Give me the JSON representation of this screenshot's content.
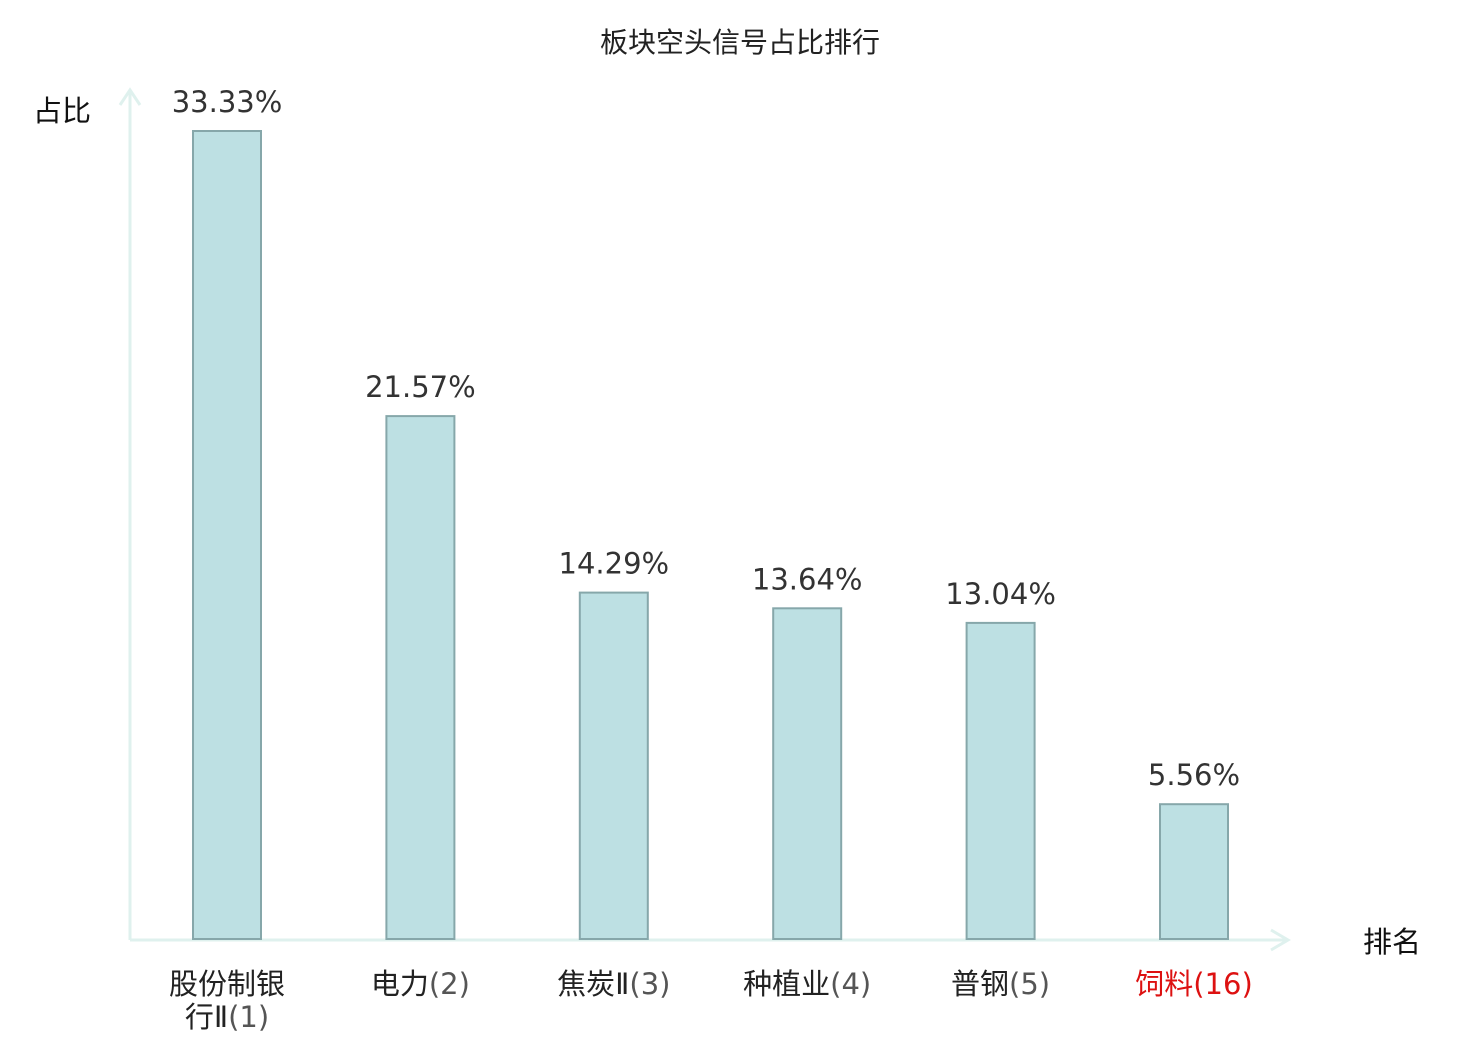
{
  "chart_data": {
    "type": "bar",
    "title": "板块空头信号占比排行",
    "xlabel": "排名",
    "ylabel": "占比",
    "categories": [
      {
        "name": "股份制银行Ⅱ",
        "rank": "(1)",
        "highlight": false
      },
      {
        "name": "电力",
        "rank": "(2)",
        "highlight": false
      },
      {
        "name": "焦炭Ⅱ",
        "rank": "(3)",
        "highlight": false
      },
      {
        "name": "种植业",
        "rank": "(4)",
        "highlight": false
      },
      {
        "name": "普钢",
        "rank": "(5)",
        "highlight": false
      },
      {
        "name": "饲料",
        "rank": "(16)",
        "highlight": true
      }
    ],
    "values": [
      33.33,
      21.57,
      14.29,
      13.64,
      13.04,
      5.56
    ],
    "value_labels": [
      "33.33%",
      "21.57%",
      "14.29%",
      "13.64%",
      "13.04%",
      "5.56%"
    ],
    "unit": "%",
    "ylim": [
      0,
      35
    ],
    "grid": false,
    "legend": "none",
    "colors": {
      "bar_fill": "#bde0e3",
      "bar_stroke": "#86a7aa",
      "axis": "#dff1ee",
      "highlight_label": "#dd1111"
    }
  }
}
